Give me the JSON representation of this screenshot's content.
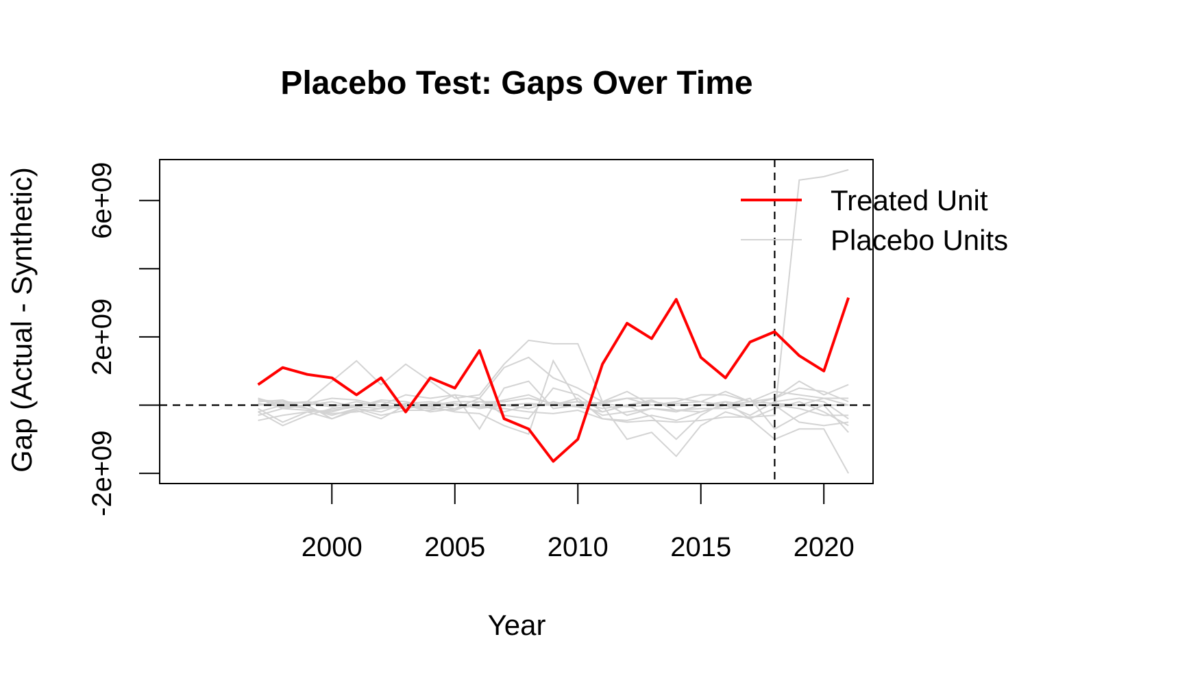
{
  "chart_data": {
    "type": "line",
    "title": "Placebo Test: Gaps Over Time",
    "xlabel": "Year",
    "ylabel": "Gap (Actual - Synthetic)",
    "xlim": [
      1993,
      2022
    ],
    "ylim": [
      -2300000000,
      7200000000
    ],
    "x_ticks": [
      2000,
      2005,
      2010,
      2015,
      2020
    ],
    "x_tick_labels": [
      "2000",
      "2005",
      "2010",
      "2015",
      "2020"
    ],
    "y_ticks": [
      -2000000000,
      0,
      2000000000,
      4000000000,
      6000000000
    ],
    "y_tick_labels": [
      "-2e+09",
      "",
      "2e+09",
      "",
      "6e+09"
    ],
    "reference_lines": {
      "horizontal_y": 0,
      "vertical_x": 2018,
      "style": "dashed",
      "color": "#000000"
    },
    "legend": {
      "placement": "top-right",
      "entries": [
        {
          "label": "Treated Unit",
          "color": "#ff0000"
        },
        {
          "label": "Placebo Units",
          "color": "#d3d3d3"
        }
      ]
    },
    "x": [
      1997,
      1998,
      1999,
      2000,
      2001,
      2002,
      2003,
      2004,
      2005,
      2006,
      2007,
      2008,
      2009,
      2010,
      2011,
      2012,
      2013,
      2014,
      2015,
      2016,
      2017,
      2018,
      2019,
      2020,
      2021
    ],
    "treated": {
      "name": "Treated Unit",
      "color": "#ff0000",
      "values": [
        600000000,
        1100000000,
        900000000,
        800000000,
        300000000,
        800000000,
        -200000000,
        800000000,
        500000000,
        1600000000,
        -400000000,
        -700000000,
        -1650000000,
        -1000000000,
        1200000000,
        2400000000,
        1950000000,
        3100000000,
        1400000000,
        800000000,
        1850000000,
        2150000000,
        1450000000,
        1000000000,
        3150000000
      ]
    },
    "placebo_color": "#d3d3d3",
    "placebos": [
      [
        -450000000,
        -300000000,
        -200000000,
        -150000000,
        -50000000,
        -100000000,
        50000000,
        100000000,
        0,
        -50000000,
        -100000000,
        -200000000,
        -250000000,
        -150000000,
        -400000000,
        -500000000,
        -450000000,
        -500000000,
        -450000000,
        -350000000,
        -350000000,
        -300000000,
        6600000000,
        6700000000,
        6900000000
      ],
      [
        200000000,
        0,
        100000000,
        700000000,
        1300000000,
        600000000,
        1200000000,
        700000000,
        200000000,
        300000000,
        1200000000,
        1900000000,
        1800000000,
        1800000000,
        100000000,
        200000000,
        0,
        100000000,
        300000000,
        300000000,
        100000000,
        200000000,
        500000000,
        400000000,
        100000000
      ],
      [
        -200000000,
        -600000000,
        -300000000,
        -100000000,
        0,
        0,
        300000000,
        200000000,
        300000000,
        200000000,
        1100000000,
        1400000000,
        800000000,
        500000000,
        100000000,
        -300000000,
        -100000000,
        -150000000,
        -100000000,
        -100000000,
        0,
        200000000,
        700000000,
        300000000,
        600000000
      ],
      [
        100000000,
        150000000,
        -100000000,
        -300000000,
        -100000000,
        -200000000,
        50000000,
        0,
        300000000,
        -700000000,
        500000000,
        700000000,
        -100000000,
        0,
        0,
        -1000000000,
        -800000000,
        -1500000000,
        -600000000,
        -200000000,
        -400000000,
        -1000000000,
        -700000000,
        -700000000,
        -2000000000
      ],
      [
        -100000000,
        -500000000,
        -200000000,
        -400000000,
        -150000000,
        -400000000,
        0,
        -50000000,
        -200000000,
        -250000000,
        -600000000,
        -850000000,
        1300000000,
        100000000,
        -100000000,
        0,
        -350000000,
        -1000000000,
        -300000000,
        100000000,
        -400000000,
        -100000000,
        100000000,
        -200000000,
        -600000000
      ],
      [
        0,
        100000000,
        50000000,
        -50000000,
        100000000,
        -50000000,
        -100000000,
        0,
        100000000,
        100000000,
        0,
        50000000,
        0,
        -50000000,
        100000000,
        400000000,
        0,
        50000000,
        100000000,
        400000000,
        100000000,
        400000000,
        300000000,
        200000000,
        0
      ],
      [
        200000000,
        -100000000,
        -150000000,
        -200000000,
        0,
        100000000,
        0,
        -200000000,
        -100000000,
        200000000,
        -300000000,
        -400000000,
        500000000,
        300000000,
        -200000000,
        0,
        150000000,
        -150000000,
        -200000000,
        0,
        200000000,
        -700000000,
        -300000000,
        0,
        -800000000
      ],
      [
        -300000000,
        -100000000,
        0,
        -400000000,
        -100000000,
        -300000000,
        -150000000,
        -150000000,
        0,
        0,
        150000000,
        300000000,
        0,
        200000000,
        -400000000,
        -450000000,
        -300000000,
        -450000000,
        -200000000,
        0,
        -300000000,
        100000000,
        200000000,
        100000000,
        -400000000
      ],
      [
        50000000,
        -50000000,
        0,
        100000000,
        -50000000,
        150000000,
        100000000,
        -50000000,
        50000000,
        -100000000,
        0,
        -100000000,
        100000000,
        -50000000,
        -200000000,
        0,
        100000000,
        0,
        0,
        0,
        0,
        0,
        -500000000,
        -600000000,
        -500000000
      ],
      [
        150000000,
        100000000,
        50000000,
        200000000,
        150000000,
        0,
        -50000000,
        -100000000,
        -150000000,
        100000000,
        100000000,
        200000000,
        50000000,
        100000000,
        50000000,
        200000000,
        200000000,
        200000000,
        100000000,
        0,
        100000000,
        50000000,
        0,
        200000000,
        200000000
      ],
      [
        -200000000,
        0,
        -100000000,
        -250000000,
        -200000000,
        -100000000,
        -50000000,
        0,
        -100000000,
        0,
        -200000000,
        0,
        0,
        100000000,
        -300000000,
        -200000000,
        -100000000,
        -200000000,
        0,
        100000000,
        0,
        0,
        -100000000,
        -300000000,
        -300000000
      ],
      [
        0,
        50000000,
        100000000,
        0,
        0,
        0,
        -50000000,
        50000000,
        0,
        0,
        0,
        50000000,
        0,
        0,
        50000000,
        -50000000,
        0,
        0,
        0,
        0,
        0,
        0,
        0,
        0,
        0
      ]
    ]
  }
}
